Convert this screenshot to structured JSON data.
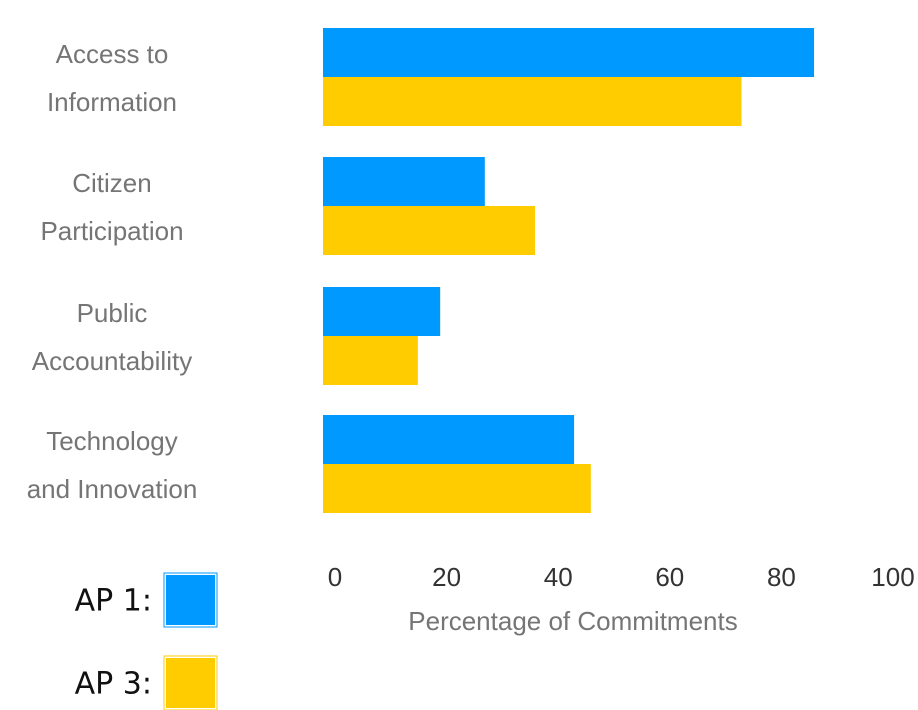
{
  "chart_data": {
    "type": "bar",
    "orientation": "horizontal",
    "categories": [
      [
        "Access to",
        "Information"
      ],
      [
        "Citizen",
        "Participation"
      ],
      [
        "Public",
        "Accountability"
      ],
      [
        "Technology",
        "and Innovation"
      ]
    ],
    "series": [
      {
        "name": "AP 1:",
        "color": "#0099ff",
        "values": [
          88,
          29,
          21,
          45
        ]
      },
      {
        "name": "AP 3:",
        "color": "#ffcc00",
        "values": [
          75,
          38,
          17,
          48
        ]
      }
    ],
    "xlim": [
      0,
      100
    ],
    "xticks": [
      "0",
      "20",
      "40",
      "60",
      "80",
      "100"
    ],
    "xlabel": "Percentage of  Commitments",
    "legend_position": "bottom-left",
    "grid": false
  }
}
